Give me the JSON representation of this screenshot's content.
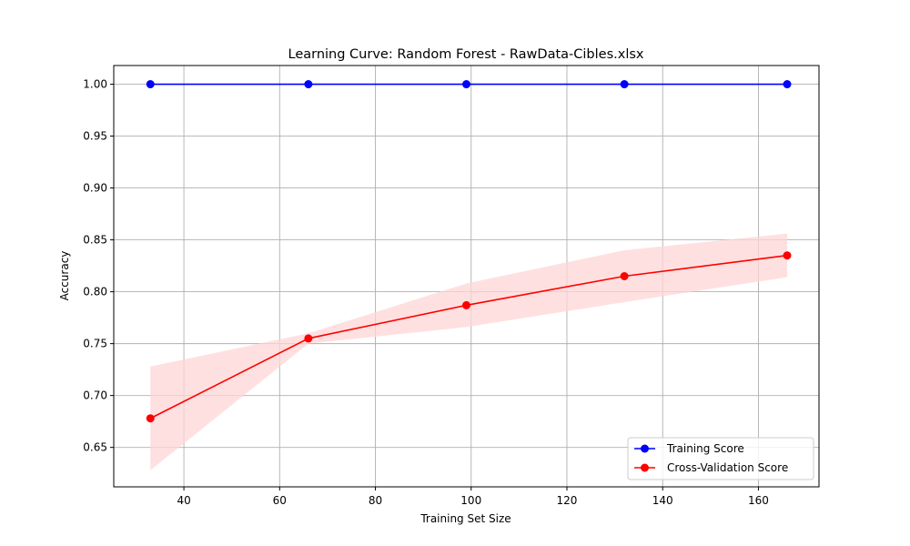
{
  "chart_data": {
    "type": "line",
    "title": "Learning Curve: Random Forest - RawData-Cibles.xlsx",
    "xlabel": "Training Set Size",
    "ylabel": "Accuracy",
    "x": [
      33,
      66,
      99,
      132,
      166
    ],
    "xlim": [
      25.35,
      172.65
    ],
    "ylim": [
      0.612,
      1.018
    ],
    "x_ticks": [
      40,
      60,
      80,
      100,
      120,
      140,
      160
    ],
    "x_tick_labels": [
      "40",
      "60",
      "80",
      "100",
      "120",
      "140",
      "160"
    ],
    "y_ticks": [
      0.65,
      0.7,
      0.75,
      0.8,
      0.85,
      0.9,
      0.95,
      1.0
    ],
    "y_tick_labels": [
      "0.65",
      "0.70",
      "0.75",
      "0.80",
      "0.85",
      "0.90",
      "0.95",
      "1.00"
    ],
    "grid": true,
    "legend_position": "lower-right",
    "series": [
      {
        "name": "Training Score",
        "color": "#0000ff",
        "marker": "circle",
        "values": [
          1.0,
          1.0,
          1.0,
          1.0,
          1.0
        ],
        "band_lower": [
          1.0,
          1.0,
          1.0,
          1.0,
          1.0
        ],
        "band_upper": [
          1.0,
          1.0,
          1.0,
          1.0,
          1.0
        ]
      },
      {
        "name": "Cross-Validation Score",
        "color": "#ff0000",
        "band_color": "#ffd6d6",
        "marker": "circle",
        "values": [
          0.678,
          0.755,
          0.787,
          0.815,
          0.835
        ],
        "band_lower": [
          0.628,
          0.75,
          0.766,
          0.79,
          0.814
        ],
        "band_upper": [
          0.728,
          0.76,
          0.808,
          0.84,
          0.856
        ]
      }
    ]
  }
}
